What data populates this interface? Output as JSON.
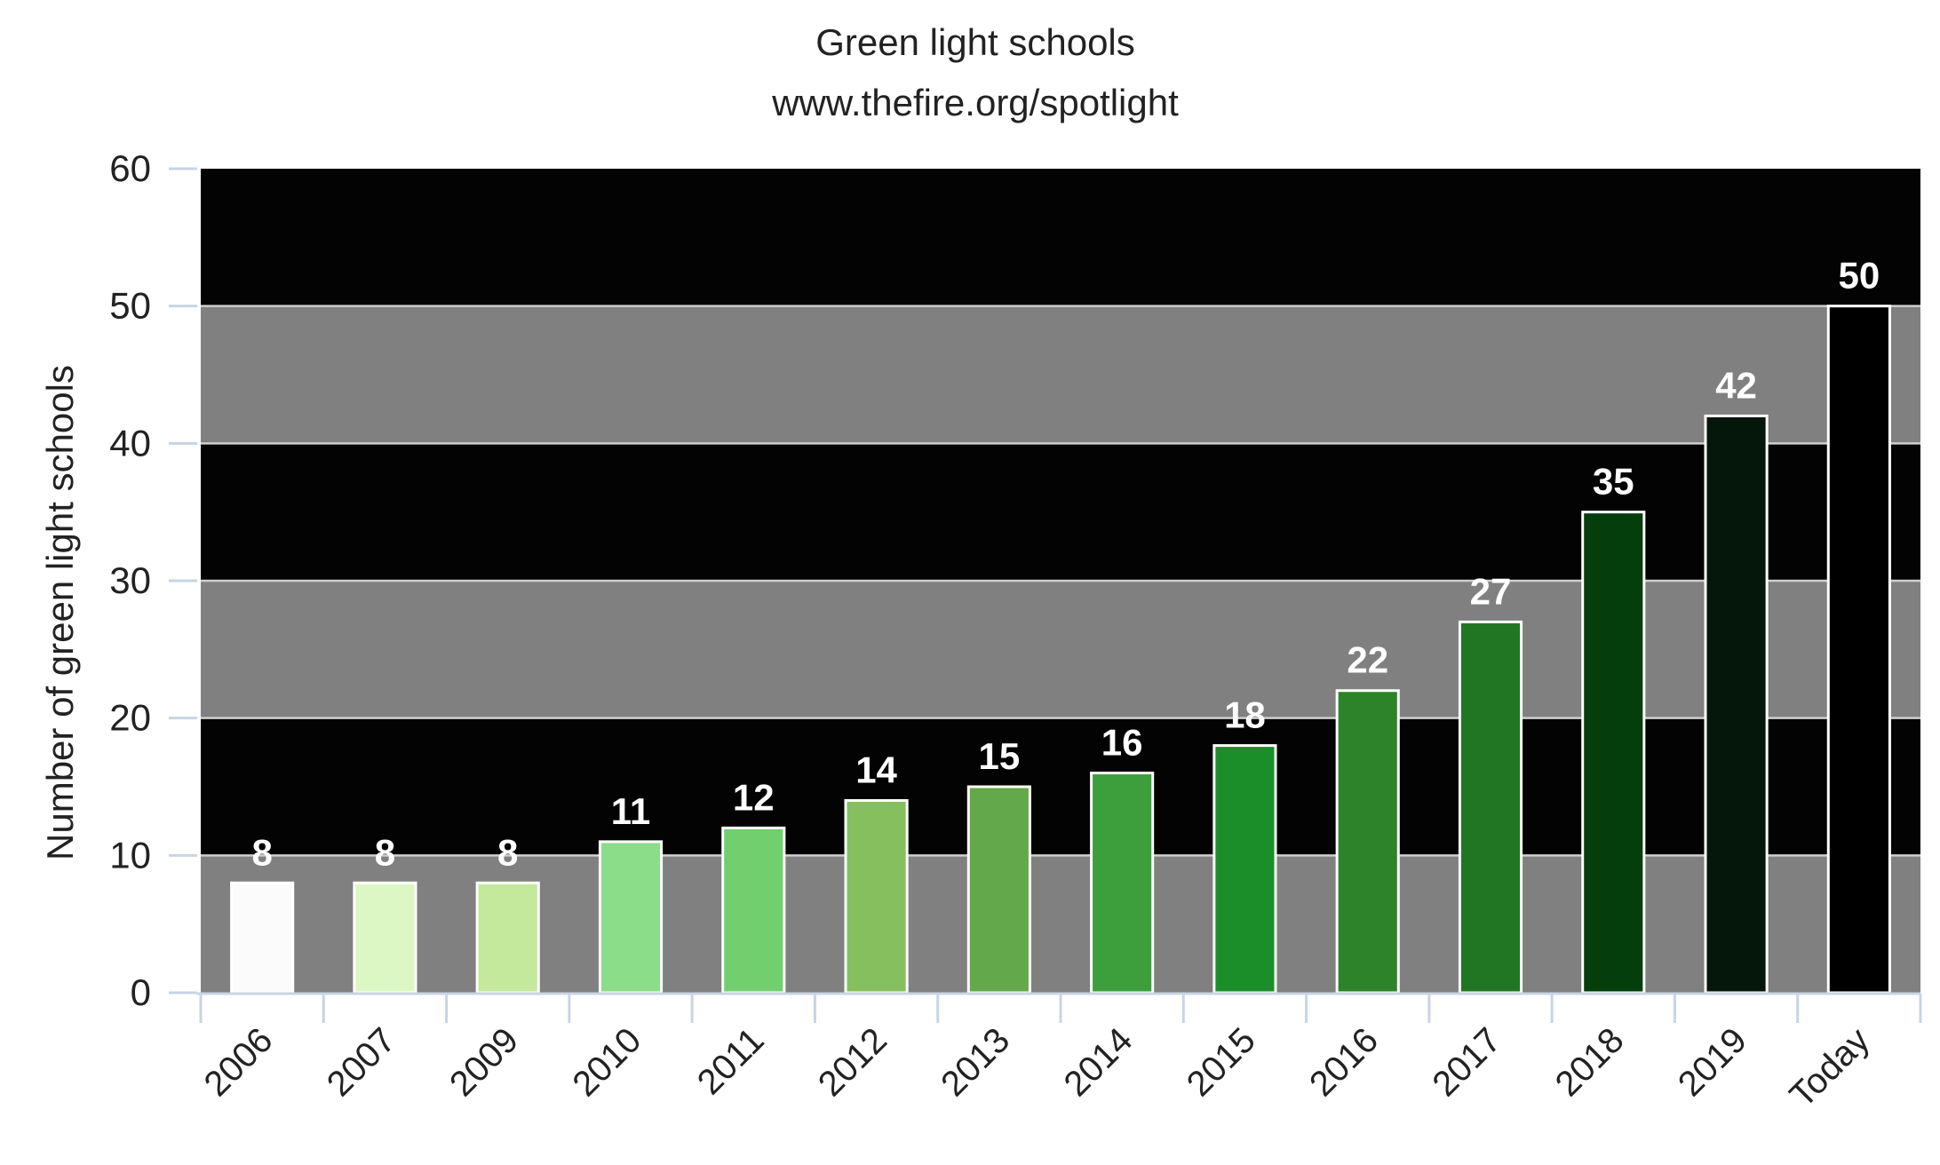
{
  "chart_data": {
    "type": "bar",
    "title": "Green light schools",
    "subtitle": "www.thefire.org/spotlight",
    "xlabel": "",
    "ylabel": "Number of green light schools",
    "ylim": [
      0,
      60
    ],
    "yticks": [
      0,
      10,
      20,
      30,
      40,
      50,
      60
    ],
    "grid": true,
    "categories": [
      "2006",
      "2007",
      "2009",
      "2010",
      "2011",
      "2012",
      "2013",
      "2014",
      "2015",
      "2016",
      "2017",
      "2018",
      "2019",
      "Today"
    ],
    "values": [
      8,
      8,
      8,
      11,
      12,
      14,
      15,
      16,
      18,
      22,
      27,
      35,
      42,
      50
    ],
    "data_labels": [
      "8",
      "8",
      "8",
      "11",
      "12",
      "14",
      "15",
      "16",
      "18",
      "22",
      "27",
      "35",
      "42",
      "50"
    ],
    "bar_colors": [
      "#fbfbfb",
      "#dcf7c4",
      "#c4e89c",
      "#8cdd8a",
      "#72cf6e",
      "#86c05e",
      "#63a84a",
      "#3c9f3c",
      "#1b8e2a",
      "#2c8329",
      "#217623",
      "#033e0c",
      "#04170a",
      "#000000"
    ],
    "band_colors": [
      "#808080",
      "#030303"
    ],
    "bar_stroke": "#ffffff",
    "axis_color": "#c8d4e3"
  }
}
